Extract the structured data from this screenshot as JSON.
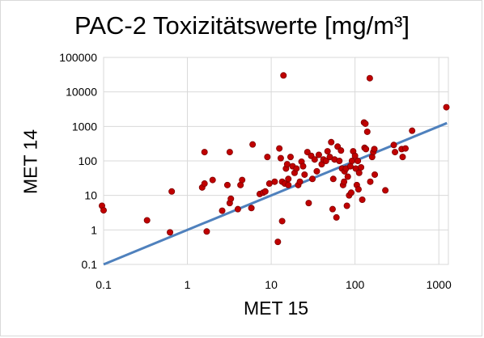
{
  "chart_data": {
    "type": "scatter",
    "title": "PAC-2 Toxizitätswerte [mg/m³]",
    "xlabel": "MET 15",
    "ylabel": "MET 14",
    "x_scale": "log",
    "y_scale": "log",
    "xlim": [
      0.1,
      1300
    ],
    "ylim": [
      0.1,
      100000
    ],
    "x_ticks": [
      "0.1",
      "1",
      "10",
      "100",
      "1000"
    ],
    "y_ticks": [
      "0.1",
      "1",
      "10",
      "100",
      "1000",
      "10000",
      "100000"
    ],
    "grid": true,
    "legend": "none",
    "colors": {
      "points": "#c00000",
      "point_edge": "#7f0000",
      "line": "#4f81bd",
      "grid": "#d9d9d9"
    },
    "reference_line": {
      "x": [
        0.1,
        1250
      ],
      "y": [
        0.1,
        1250
      ]
    },
    "series": [
      {
        "points": [
          [
            0.09,
            5
          ],
          [
            0.1,
            3.7
          ],
          [
            0.33,
            1.9
          ],
          [
            0.62,
            0.85
          ],
          [
            0.65,
            13
          ],
          [
            1.5,
            17
          ],
          [
            1.6,
            22
          ],
          [
            1.6,
            180
          ],
          [
            1.7,
            0.9
          ],
          [
            2,
            28
          ],
          [
            2.6,
            3.6
          ],
          [
            3,
            20
          ],
          [
            3.2,
            180
          ],
          [
            3.2,
            6
          ],
          [
            3.3,
            8
          ],
          [
            4,
            4
          ],
          [
            4.3,
            20
          ],
          [
            4.5,
            28
          ],
          [
            5.8,
            4.3
          ],
          [
            6,
            300
          ],
          [
            7.3,
            11
          ],
          [
            8,
            12
          ],
          [
            8.5,
            13
          ],
          [
            9,
            130
          ],
          [
            9.5,
            22
          ],
          [
            11,
            25
          ],
          [
            12,
            0.45
          ],
          [
            12.5,
            230
          ],
          [
            13,
            120
          ],
          [
            13.5,
            1.8
          ],
          [
            13.5,
            25
          ],
          [
            14,
            30000
          ],
          [
            14.5,
            22
          ],
          [
            15,
            60
          ],
          [
            15.5,
            80
          ],
          [
            16,
            30
          ],
          [
            16,
            20
          ],
          [
            17,
            130
          ],
          [
            18,
            70
          ],
          [
            19,
            45
          ],
          [
            20,
            60
          ],
          [
            21,
            20
          ],
          [
            22,
            25
          ],
          [
            23,
            95
          ],
          [
            24,
            70
          ],
          [
            25,
            40
          ],
          [
            27,
            180
          ],
          [
            28,
            6
          ],
          [
            30,
            140
          ],
          [
            31,
            30
          ],
          [
            33,
            110
          ],
          [
            35,
            50
          ],
          [
            37,
            150
          ],
          [
            40,
            80
          ],
          [
            42,
            110
          ],
          [
            45,
            100
          ],
          [
            47,
            190
          ],
          [
            50,
            130
          ],
          [
            52,
            350
          ],
          [
            54,
            4
          ],
          [
            55,
            30
          ],
          [
            57,
            110
          ],
          [
            60,
            2.3
          ],
          [
            62,
            260
          ],
          [
            65,
            100
          ],
          [
            68,
            200
          ],
          [
            70,
            60
          ],
          [
            72,
            20
          ],
          [
            74,
            25
          ],
          [
            75,
            50
          ],
          [
            78,
            60
          ],
          [
            80,
            5
          ],
          [
            82,
            35
          ],
          [
            85,
            10
          ],
          [
            88,
            70
          ],
          [
            90,
            12
          ],
          [
            92,
            100
          ],
          [
            95,
            190
          ],
          [
            100,
            140
          ],
          [
            102,
            60
          ],
          [
            105,
            20
          ],
          [
            108,
            100
          ],
          [
            110,
            15
          ],
          [
            112,
            45
          ],
          [
            118,
            65
          ],
          [
            122,
            7.5
          ],
          [
            128,
            1300
          ],
          [
            130,
            240
          ],
          [
            133,
            1200
          ],
          [
            135,
            220
          ],
          [
            140,
            700
          ],
          [
            150,
            25000
          ],
          [
            152,
            25
          ],
          [
            160,
            130
          ],
          [
            165,
            180
          ],
          [
            170,
            220
          ],
          [
            172,
            40
          ],
          [
            230,
            14
          ],
          [
            290,
            290
          ],
          [
            300,
            180
          ],
          [
            360,
            220
          ],
          [
            370,
            130
          ],
          [
            400,
            230
          ],
          [
            480,
            750
          ],
          [
            1230,
            3600
          ]
        ]
      }
    ]
  }
}
